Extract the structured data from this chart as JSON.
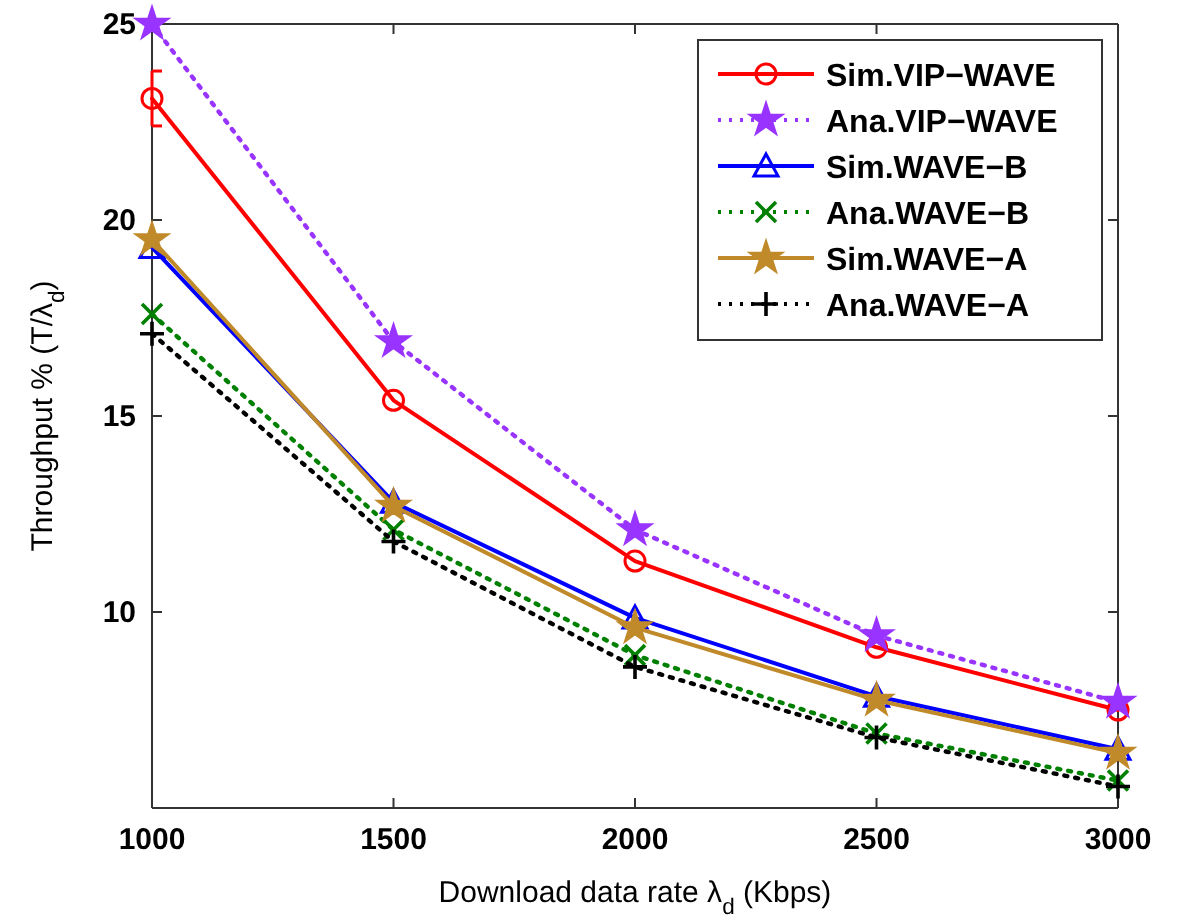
{
  "chart_data": {
    "type": "line",
    "xlabel": "Download data rate λ$_{d}$ (Kbps)",
    "ylabel": "Throughput % (T/λ$_{d}$)",
    "x": [
      1000,
      1500,
      2000,
      2500,
      3000
    ],
    "xlim": [
      1000,
      3000
    ],
    "xticks": [
      1000,
      1500,
      2000,
      2500,
      3000
    ],
    "ylim": [
      5,
      25
    ],
    "yticks": [
      10,
      15,
      20,
      25
    ],
    "legend": "top right",
    "grid": false,
    "series": [
      {
        "name": "Sim.VIP−WAVE",
        "color": "#ff0000",
        "marker": "circle",
        "line_style": "solid",
        "values": [
          23.1,
          15.4,
          11.3,
          9.1,
          7.5
        ],
        "errors": [
          [
            22.4,
            23.8
          ],
          null,
          null,
          null,
          null
        ]
      },
      {
        "name": "Ana.VIP−WAVE",
        "color": "#9933ff",
        "marker": "star",
        "line_style": "dotted",
        "values": [
          25,
          16.9,
          12.1,
          9.4,
          7.7
        ]
      },
      {
        "name": "Sim.WAVE−B",
        "color": "#0000ff",
        "marker": "triangle",
        "line_style": "solid",
        "values": [
          19.3,
          12.8,
          9.85,
          7.85,
          6.5
        ]
      },
      {
        "name": "Ana.WAVE−B",
        "color": "#008000",
        "marker": "cross",
        "line_style": "dotted",
        "values": [
          17.6,
          12.1,
          8.9,
          6.9,
          5.7
        ]
      },
      {
        "name": "Sim.WAVE−A",
        "color": "#c08a2a",
        "marker": "star",
        "line_style": "solid",
        "values": [
          19.5,
          12.7,
          9.6,
          7.75,
          6.4
        ]
      },
      {
        "name": "Ana.WAVE−A",
        "color": "#000000",
        "marker": "plus",
        "line_style": "dotted",
        "values": [
          17.1,
          11.8,
          8.6,
          6.8,
          5.55
        ]
      }
    ]
  }
}
